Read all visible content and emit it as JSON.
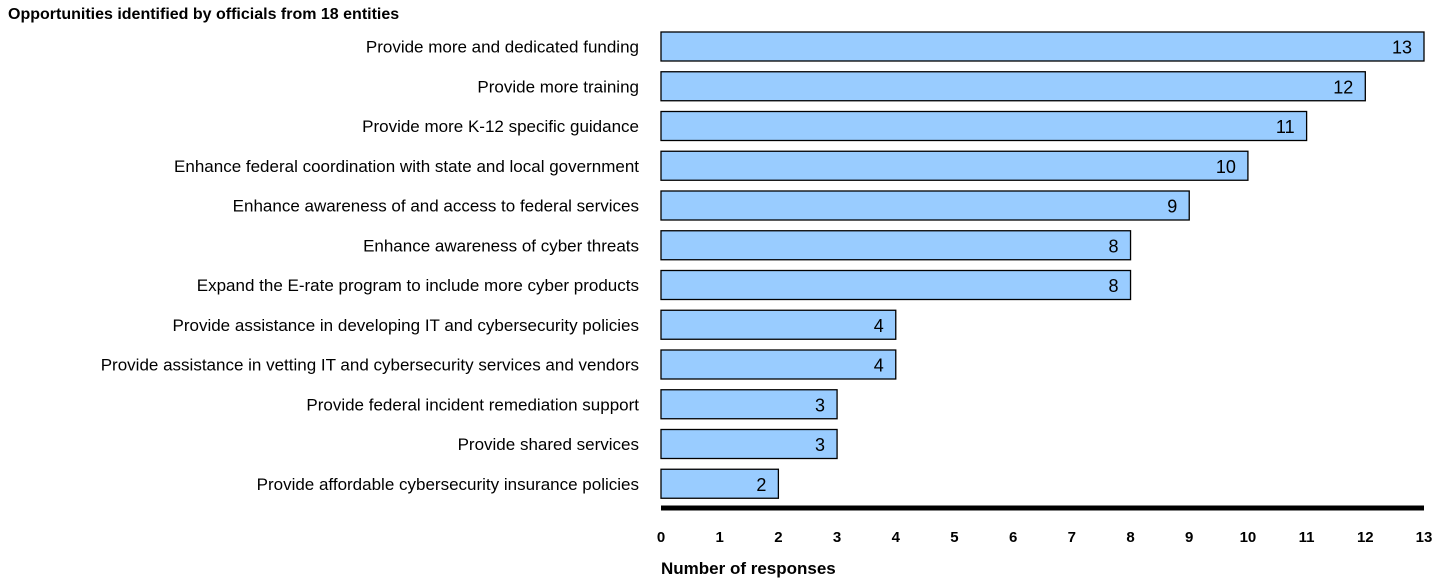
{
  "chart_data": {
    "type": "bar",
    "orientation": "horizontal",
    "title": "Opportunities identified by officials from 18 entities",
    "xlabel": "Number of responses",
    "ylabel": "",
    "xlim": [
      0,
      13
    ],
    "ticks": [
      "0",
      "1",
      "2",
      "3",
      "4",
      "5",
      "6",
      "7",
      "8",
      "9",
      "10",
      "11",
      "12",
      "13"
    ],
    "categories": [
      "Provide more and dedicated funding",
      "Provide more training",
      "Provide more K-12 specific guidance",
      "Enhance federal coordination with state and local government",
      "Enhance awareness of and access to federal services",
      "Enhance awareness of cyber threats",
      "Expand the E-rate program to include more cyber products",
      "Provide assistance in developing IT and cybersecurity policies",
      "Provide assistance in vetting IT and cybersecurity services and vendors",
      "Provide federal incident remediation support",
      "Provide shared services",
      "Provide affordable cybersecurity insurance policies"
    ],
    "values": [
      13,
      12,
      11,
      10,
      9,
      8,
      8,
      4,
      4,
      3,
      3,
      2
    ],
    "grid": false,
    "legend": "none",
    "bar_color": "#99ccff"
  }
}
